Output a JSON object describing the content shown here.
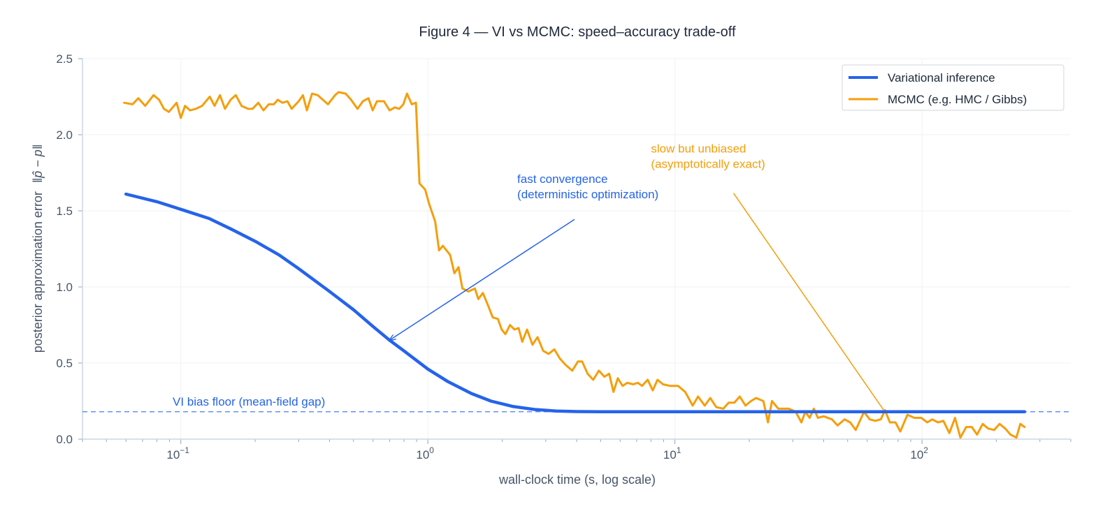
{
  "chart_data": {
    "type": "line",
    "title": "Figure 4 — VI vs MCMC: speed–accuracy trade-off",
    "xlabel": "wall-clock time (s, log scale)",
    "ylabel_prefix": "posterior approximation error",
    "ylabel_math": "‖p̂ − p‖",
    "xscale": "log",
    "xlim": [
      0.04,
      400
    ],
    "ylim": [
      0,
      2.5
    ],
    "grid": true,
    "legend_placement": "top-right",
    "xticks": [
      {
        "base": "10",
        "exp": "−1",
        "value": 0.1
      },
      {
        "base": "10",
        "exp": "0",
        "value": 1
      },
      {
        "base": "10",
        "exp": "1",
        "value": 10
      },
      {
        "base": "10",
        "exp": "2",
        "value": 100
      }
    ],
    "yticks": [
      {
        "label": "0.0",
        "value": 0
      },
      {
        "label": "0.5",
        "value": 0.5
      },
      {
        "label": "1.0",
        "value": 1
      },
      {
        "label": "1.5",
        "value": 1.5
      },
      {
        "label": "2.0",
        "value": 2
      },
      {
        "label": "2.5",
        "value": 2.5
      }
    ],
    "series": [
      {
        "name": "Variational inference",
        "color": "#2563eb",
        "x": [
          0.06,
          0.08,
          0.1,
          0.13,
          0.16,
          0.2,
          0.25,
          0.3,
          0.4,
          0.5,
          0.6,
          0.7,
          0.8,
          1.0,
          1.2,
          1.5,
          1.8,
          2.2,
          2.7,
          3.3,
          4,
          5,
          7,
          10,
          20,
          50,
          100,
          260
        ],
        "y": [
          1.61,
          1.56,
          1.51,
          1.45,
          1.38,
          1.3,
          1.21,
          1.12,
          0.97,
          0.85,
          0.74,
          0.65,
          0.58,
          0.46,
          0.38,
          0.3,
          0.25,
          0.215,
          0.195,
          0.185,
          0.181,
          0.18,
          0.18,
          0.18,
          0.18,
          0.18,
          0.18,
          0.18
        ]
      },
      {
        "name": "MCMC (e.g. HMC / Gibbs)",
        "color": "#f59e0b",
        "x": [
          0.059,
          0.0638,
          0.0673,
          0.0718,
          0.0776,
          0.0817,
          0.0855,
          0.0895,
          0.0962,
          0.1,
          0.104,
          0.109,
          0.115,
          0.122,
          0.131,
          0.137,
          0.144,
          0.151,
          0.159,
          0.167,
          0.176,
          0.187,
          0.195,
          0.206,
          0.216,
          0.227,
          0.238,
          0.247,
          0.258,
          0.27,
          0.281,
          0.3,
          0.312,
          0.324,
          0.34,
          0.358,
          0.394,
          0.421,
          0.435,
          0.465,
          0.489,
          0.519,
          0.546,
          0.575,
          0.598,
          0.622,
          0.664,
          0.7,
          0.736,
          0.766,
          0.796,
          0.823,
          0.861,
          0.895,
          0.925,
          0.975,
          1.01,
          1.07,
          1.11,
          1.15,
          1.23,
          1.28,
          1.33,
          1.38,
          1.46,
          1.55,
          1.6,
          1.67,
          1.76,
          1.83,
          1.92,
          1.99,
          2.06,
          2.15,
          2.24,
          2.33,
          2.41,
          2.52,
          2.65,
          2.78,
          2.93,
          3.08,
          3.25,
          3.42,
          3.6,
          3.84,
          4.05,
          4.21,
          4.43,
          4.67,
          4.92,
          5.18,
          5.42,
          5.64,
          5.87,
          6.14,
          6.42,
          6.77,
          7.08,
          7.36,
          7.76,
          8.13,
          8.5,
          8.95,
          9.55,
          10.3,
          11.0,
          11.8,
          12.4,
          13.2,
          13.9,
          14.7,
          15.7,
          16.5,
          17.4,
          18.3,
          19.3,
          20.3,
          21.3,
          22.8,
          23.8,
          24.7,
          26.2,
          28.9,
          30.8,
          32.5,
          33.7,
          35.1,
          36.5,
          37.9,
          40.0,
          43.2,
          45.5,
          48.6,
          51.2,
          53.9,
          58.3,
          61.4,
          64.7,
          68.1,
          70.8,
          74.1,
          78.1,
          81.7,
          87.3,
          93.1,
          99.3,
          105,
          110,
          116,
          122,
          129,
          136,
          143,
          151,
          159,
          167,
          176,
          185,
          196,
          206,
          217,
          228,
          241,
          250,
          260
        ],
        "y": [
          2.21,
          2.2,
          2.24,
          2.19,
          2.26,
          2.23,
          2.17,
          2.15,
          2.21,
          2.11,
          2.19,
          2.16,
          2.17,
          2.19,
          2.25,
          2.19,
          2.26,
          2.17,
          2.23,
          2.26,
          2.19,
          2.17,
          2.17,
          2.21,
          2.16,
          2.2,
          2.2,
          2.23,
          2.21,
          2.22,
          2.17,
          2.22,
          2.26,
          2.16,
          2.27,
          2.26,
          2.2,
          2.26,
          2.28,
          2.27,
          2.23,
          2.17,
          2.22,
          2.24,
          2.16,
          2.22,
          2.22,
          2.16,
          2.18,
          2.17,
          2.2,
          2.27,
          2.2,
          2.21,
          1.68,
          1.64,
          1.55,
          1.43,
          1.24,
          1.27,
          1.21,
          1.09,
          1.13,
          0.99,
          0.97,
          0.99,
          0.92,
          0.96,
          0.87,
          0.8,
          0.79,
          0.72,
          0.69,
          0.75,
          0.72,
          0.73,
          0.64,
          0.72,
          0.62,
          0.67,
          0.58,
          0.56,
          0.59,
          0.53,
          0.49,
          0.45,
          0.51,
          0.51,
          0.43,
          0.39,
          0.45,
          0.41,
          0.43,
          0.31,
          0.4,
          0.35,
          0.37,
          0.36,
          0.37,
          0.35,
          0.39,
          0.32,
          0.39,
          0.36,
          0.35,
          0.35,
          0.31,
          0.22,
          0.28,
          0.22,
          0.27,
          0.21,
          0.2,
          0.24,
          0.24,
          0.28,
          0.22,
          0.25,
          0.27,
          0.25,
          0.11,
          0.25,
          0.2,
          0.2,
          0.18,
          0.11,
          0.18,
          0.14,
          0.2,
          0.14,
          0.15,
          0.13,
          0.09,
          0.13,
          0.11,
          0.06,
          0.18,
          0.13,
          0.12,
          0.13,
          0.19,
          0.11,
          0.11,
          0.05,
          0.16,
          0.14,
          0.14,
          0.11,
          0.13,
          0.11,
          0.12,
          0.04,
          0.14,
          0.01,
          0.08,
          0.08,
          0.03,
          0.1,
          0.07,
          0.06,
          0.1,
          0.07,
          0.03,
          0.01,
          0.1,
          0.08
        ]
      }
    ],
    "reference_line": {
      "y": 0.18,
      "label": "VI bias floor (mean-field gap)",
      "color": "#2563eb",
      "style": "dashed"
    },
    "annotations": [
      {
        "lines": [
          "fast convergence",
          "(deterministic optimization)"
        ],
        "color": "#2563eb",
        "target": [
          0.7,
          0.65
        ],
        "text_at": [
          2.3,
          1.6
        ]
      },
      {
        "lines": [
          "slow but unbiased",
          "(asymptotically exact)"
        ],
        "color": "#f59e0b",
        "target": [
          70,
          0.19
        ],
        "text_at": [
          8,
          1.8
        ]
      }
    ]
  }
}
